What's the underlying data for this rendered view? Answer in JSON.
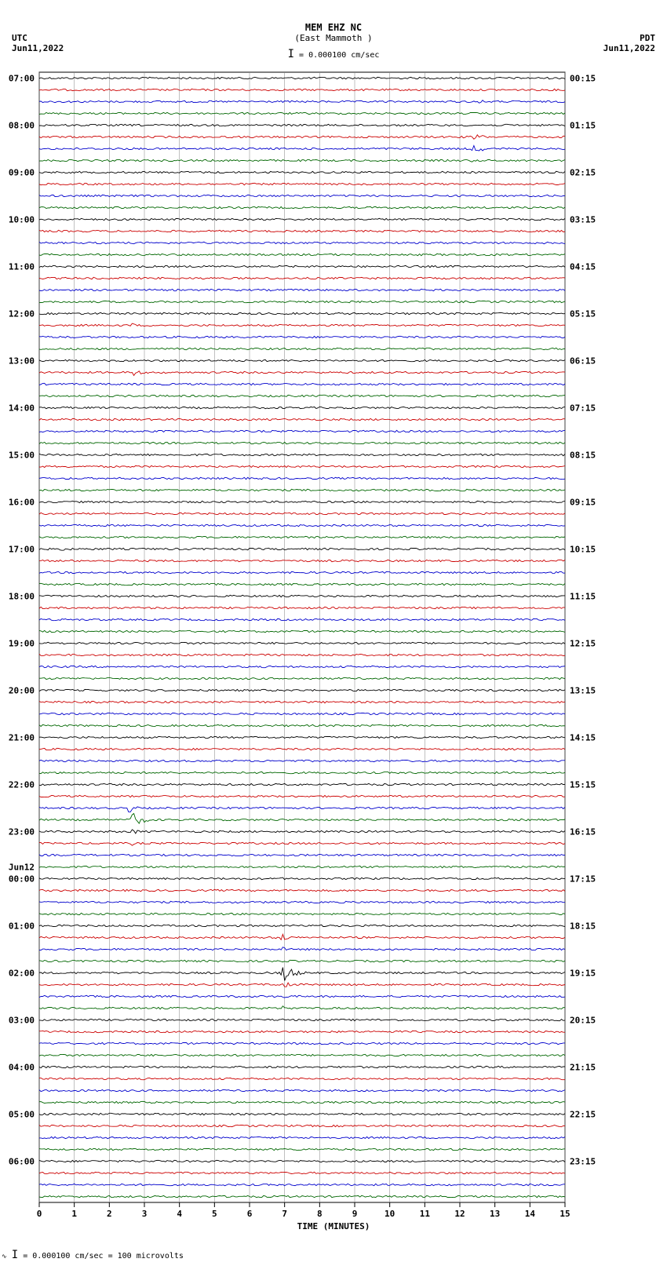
{
  "header": {
    "station": "MEM EHZ NC",
    "location": "(East Mammoth )",
    "scale_text": "= 0.000100 cm/sec",
    "left_tz": "UTC",
    "left_date": "Jun11,2022",
    "right_tz": "PDT",
    "right_date": "Jun11,2022"
  },
  "plot": {
    "x_min": 0,
    "x_max": 15,
    "x_tick_step": 1,
    "grid_color": "#808080",
    "background": "#ffffff",
    "trace_height": 15,
    "n_traces": 96,
    "colors": [
      "#000000",
      "#cc0000",
      "#0000cc",
      "#006600"
    ],
    "left_labels": [
      {
        "i": 0,
        "t": "07:00"
      },
      {
        "i": 4,
        "t": "08:00"
      },
      {
        "i": 8,
        "t": "09:00"
      },
      {
        "i": 12,
        "t": "10:00"
      },
      {
        "i": 16,
        "t": "11:00"
      },
      {
        "i": 20,
        "t": "12:00"
      },
      {
        "i": 24,
        "t": "13:00"
      },
      {
        "i": 28,
        "t": "14:00"
      },
      {
        "i": 32,
        "t": "15:00"
      },
      {
        "i": 36,
        "t": "16:00"
      },
      {
        "i": 40,
        "t": "17:00"
      },
      {
        "i": 44,
        "t": "18:00"
      },
      {
        "i": 48,
        "t": "19:00"
      },
      {
        "i": 52,
        "t": "20:00"
      },
      {
        "i": 56,
        "t": "21:00"
      },
      {
        "i": 60,
        "t": "22:00"
      },
      {
        "i": 64,
        "t": "23:00"
      },
      {
        "i": 67,
        "t": "Jun12"
      },
      {
        "i": 68,
        "t": "00:00"
      },
      {
        "i": 72,
        "t": "01:00"
      },
      {
        "i": 76,
        "t": "02:00"
      },
      {
        "i": 80,
        "t": "03:00"
      },
      {
        "i": 84,
        "t": "04:00"
      },
      {
        "i": 88,
        "t": "05:00"
      },
      {
        "i": 92,
        "t": "06:00"
      }
    ],
    "right_labels": [
      {
        "i": 0,
        "t": "00:15"
      },
      {
        "i": 4,
        "t": "01:15"
      },
      {
        "i": 8,
        "t": "02:15"
      },
      {
        "i": 12,
        "t": "03:15"
      },
      {
        "i": 16,
        "t": "04:15"
      },
      {
        "i": 20,
        "t": "05:15"
      },
      {
        "i": 24,
        "t": "06:15"
      },
      {
        "i": 28,
        "t": "07:15"
      },
      {
        "i": 32,
        "t": "08:15"
      },
      {
        "i": 36,
        "t": "09:15"
      },
      {
        "i": 40,
        "t": "10:15"
      },
      {
        "i": 44,
        "t": "11:15"
      },
      {
        "i": 48,
        "t": "12:15"
      },
      {
        "i": 52,
        "t": "13:15"
      },
      {
        "i": 56,
        "t": "14:15"
      },
      {
        "i": 60,
        "t": "15:15"
      },
      {
        "i": 64,
        "t": "16:15"
      },
      {
        "i": 68,
        "t": "17:15"
      },
      {
        "i": 72,
        "t": "18:15"
      },
      {
        "i": 76,
        "t": "19:15"
      },
      {
        "i": 80,
        "t": "20:15"
      },
      {
        "i": 84,
        "t": "21:15"
      },
      {
        "i": 88,
        "t": "22:15"
      },
      {
        "i": 92,
        "t": "23:15"
      }
    ],
    "events": [
      {
        "trace": 2,
        "x": 12.5,
        "dur": 0.6,
        "amp": 30,
        "color": "#0000cc"
      },
      {
        "trace": 3,
        "x": 12.0,
        "dur": 0.3,
        "amp": 15,
        "color": "#006600"
      },
      {
        "trace": 5,
        "x": 12.3,
        "dur": 1.0,
        "amp": 55,
        "color": "#cc0000"
      },
      {
        "trace": 6,
        "x": 12.3,
        "dur": 1.2,
        "amp": 50,
        "color": "#0000cc"
      },
      {
        "trace": 7,
        "x": 12.3,
        "dur": 0.8,
        "amp": 20,
        "color": "#006600"
      },
      {
        "trace": 21,
        "x": 2.6,
        "dur": 0.3,
        "amp": 45,
        "color": "#cc0000"
      },
      {
        "trace": 22,
        "x": 2.6,
        "dur": 0.2,
        "amp": 20,
        "color": "#0000cc"
      },
      {
        "trace": 23,
        "x": 2.6,
        "dur": 0.2,
        "amp": 10,
        "color": "#006600"
      },
      {
        "trace": 24,
        "x": 2.6,
        "dur": 0.15,
        "amp": 10,
        "color": "#000000"
      },
      {
        "trace": 25,
        "x": 2.65,
        "dur": 0.6,
        "amp": 60,
        "color": "#cc0000"
      },
      {
        "trace": 26,
        "x": 2.65,
        "dur": 0.4,
        "amp": 20,
        "color": "#0000cc"
      },
      {
        "trace": 27,
        "x": 2.65,
        "dur": 0.3,
        "amp": 10,
        "color": "#006600"
      },
      {
        "trace": 29,
        "x": 6.2,
        "dur": 0.4,
        "amp": 10,
        "color": "#cc0000"
      },
      {
        "trace": 30,
        "x": 3.6,
        "dur": 0.2,
        "amp": 10,
        "color": "#0000cc"
      },
      {
        "trace": 30,
        "x": 8.5,
        "dur": 0.2,
        "amp": 10,
        "color": "#0000cc"
      },
      {
        "trace": 35,
        "x": 10.7,
        "dur": 0.15,
        "amp": 12,
        "color": "#006600"
      },
      {
        "trace": 37,
        "x": 2.2,
        "dur": 0.15,
        "amp": 8,
        "color": "#cc0000"
      },
      {
        "trace": 40,
        "x": 0.55,
        "dur": 0.5,
        "amp": 40,
        "color": "#000000"
      },
      {
        "trace": 41,
        "x": 0.6,
        "dur": 0.3,
        "amp": 12,
        "color": "#cc0000"
      },
      {
        "trace": 54,
        "x": 12.3,
        "dur": 0.8,
        "amp": 15,
        "color": "#0000cc"
      },
      {
        "trace": 59,
        "x": 2.5,
        "dur": 0.3,
        "amp": 20,
        "color": "#006600"
      },
      {
        "trace": 60,
        "x": 2.5,
        "dur": 0.25,
        "amp": 15,
        "color": "#000000"
      },
      {
        "trace": 61,
        "x": 2.5,
        "dur": 0.2,
        "amp": 12,
        "color": "#cc0000"
      },
      {
        "trace": 62,
        "x": 2.5,
        "dur": 0.7,
        "amp": 55,
        "color": "#0000cc"
      },
      {
        "trace": 63,
        "x": 2.55,
        "dur": 1.2,
        "amp": 85,
        "color": "#006600"
      },
      {
        "trace": 64,
        "x": 2.6,
        "dur": 0.8,
        "amp": 40,
        "color": "#000000"
      },
      {
        "trace": 65,
        "x": 2.6,
        "dur": 0.5,
        "amp": 25,
        "color": "#cc0000"
      },
      {
        "trace": 66,
        "x": 2.6,
        "dur": 0.4,
        "amp": 15,
        "color": "#0000cc"
      },
      {
        "trace": 67,
        "x": 2.6,
        "dur": 0.4,
        "amp": 12,
        "color": "#006600"
      },
      {
        "trace": 68,
        "x": 6.9,
        "dur": 0.3,
        "amp": 20,
        "color": "#000000"
      },
      {
        "trace": 69,
        "x": 6.9,
        "dur": 0.25,
        "amp": 15,
        "color": "#cc0000"
      },
      {
        "trace": 70,
        "x": 6.9,
        "dur": 0.2,
        "amp": 12,
        "color": "#0000cc"
      },
      {
        "trace": 71,
        "x": 2.6,
        "dur": 0.3,
        "amp": 10,
        "color": "#006600"
      },
      {
        "trace": 72,
        "x": 6.9,
        "dur": 0.2,
        "amp": 10,
        "color": "#000000"
      },
      {
        "trace": 73,
        "x": 6.85,
        "dur": 0.6,
        "amp": 70,
        "color": "#cc0000"
      },
      {
        "trace": 74,
        "x": 6.85,
        "dur": 0.5,
        "amp": 40,
        "color": "#0000cc"
      },
      {
        "trace": 75,
        "x": 6.85,
        "dur": 0.4,
        "amp": 25,
        "color": "#006600"
      },
      {
        "trace": 76,
        "x": 6.85,
        "dur": 1.2,
        "amp": 110,
        "color": "#000000"
      },
      {
        "trace": 77,
        "x": 6.9,
        "dur": 0.8,
        "amp": 60,
        "color": "#cc0000"
      },
      {
        "trace": 78,
        "x": 6.9,
        "dur": 0.6,
        "amp": 35,
        "color": "#0000cc"
      },
      {
        "trace": 79,
        "x": 6.9,
        "dur": 0.5,
        "amp": 25,
        "color": "#006600"
      },
      {
        "trace": 80,
        "x": 6.9,
        "dur": 0.4,
        "amp": 20,
        "color": "#000000"
      },
      {
        "trace": 81,
        "x": 6.9,
        "dur": 0.35,
        "amp": 15,
        "color": "#cc0000"
      },
      {
        "trace": 82,
        "x": 6.9,
        "dur": 0.3,
        "amp": 12,
        "color": "#0000cc"
      },
      {
        "trace": 83,
        "x": 6.9,
        "dur": 0.25,
        "amp": 10,
        "color": "#006600"
      },
      {
        "trace": 83,
        "x": 13.8,
        "dur": 0.3,
        "amp": 12,
        "color": "#006600"
      },
      {
        "trace": 84,
        "x": 6.9,
        "dur": 0.2,
        "amp": 8,
        "color": "#000000"
      }
    ]
  },
  "x_axis_label": "TIME (MINUTES)",
  "footer": "= 0.000100 cm/sec =    100 microvolts"
}
